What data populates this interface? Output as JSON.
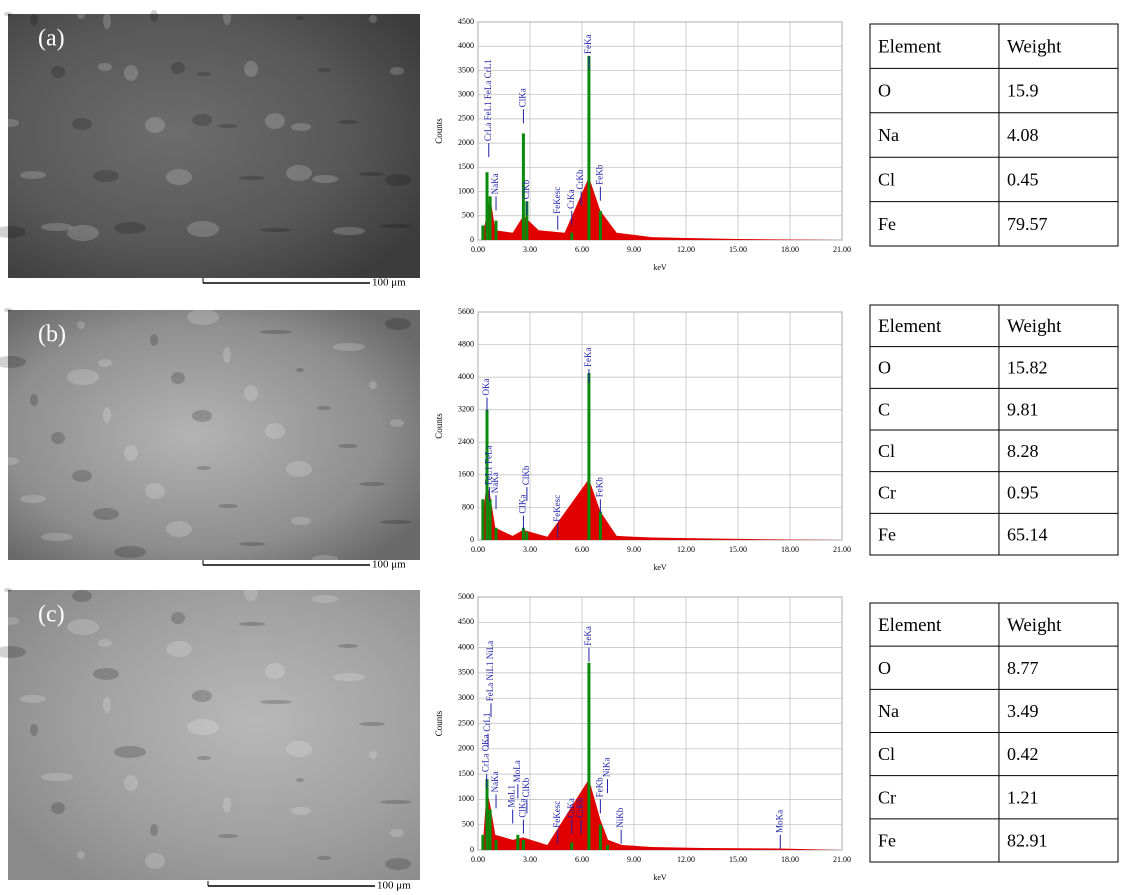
{
  "panels": [
    {
      "label": "(a)",
      "scale_bar": "100 μm",
      "table": {
        "header": [
          "Element",
          "Weight"
        ],
        "rows": [
          [
            "O",
            "15.9"
          ],
          [
            "Na",
            "4.08"
          ],
          [
            "Cl",
            "0.45"
          ],
          [
            "Fe",
            "79.57"
          ]
        ]
      }
    },
    {
      "label": "(b)",
      "scale_bar": "100 μm",
      "table": {
        "header": [
          "Element",
          "Weight"
        ],
        "rows": [
          [
            "O",
            "15.82"
          ],
          [
            "C",
            "9.81"
          ],
          [
            "Cl",
            "8.28"
          ],
          [
            "Cr",
            "0.95"
          ],
          [
            "Fe",
            "65.14"
          ]
        ]
      }
    },
    {
      "label": "(c)",
      "scale_bar": "100 μm",
      "table": {
        "header": [
          "Element",
          "Weight"
        ],
        "rows": [
          [
            "O",
            "8.77"
          ],
          [
            "Na",
            "3.49"
          ],
          [
            "Cl",
            "0.42"
          ],
          [
            "Cr",
            "1.21"
          ],
          [
            "Fe",
            "82.91"
          ]
        ]
      }
    }
  ],
  "chart_data": [
    {
      "type": "spectrum",
      "xlabel": "keV",
      "ylabel": "Counts",
      "xlim": [
        0,
        21
      ],
      "ylim": [
        0,
        4500
      ],
      "xticks": [
        {
          "value": 0,
          "label": "0.00"
        },
        {
          "value": 3,
          "label": "3.00"
        },
        {
          "value": 6,
          "label": "6.00"
        },
        {
          "value": 9,
          "label": "9.00"
        },
        {
          "value": 12,
          "label": "12.00"
        },
        {
          "value": 15,
          "label": "15.00"
        },
        {
          "value": 18,
          "label": "18.00"
        },
        {
          "value": 21,
          "label": "21.00"
        }
      ],
      "yticks": [
        0,
        500,
        1000,
        1500,
        2000,
        2500,
        3000,
        3500,
        4000,
        4500
      ],
      "grid": true,
      "series": [
        {
          "color": "#e00000",
          "x": [
            0.3,
            0.7,
            1.0,
            2.0,
            2.62,
            3.5,
            5.0,
            6.4,
            7.06,
            8,
            10,
            12,
            15,
            18,
            21
          ],
          "values": [
            150,
            900,
            200,
            150,
            500,
            200,
            150,
            1300,
            600,
            150,
            60,
            40,
            20,
            10,
            0
          ]
        },
        {
          "color": "#0a8a0a",
          "x": [
            0.28,
            0.52,
            0.7,
            1.04,
            2.62,
            2.82,
            5.41,
            6.4,
            7.06
          ],
          "values": [
            300,
            1400,
            900,
            400,
            2200,
            800,
            150,
            3800,
            600
          ]
        }
      ],
      "peak_labels": [
        {
          "text": "CrLa FeL1 FeLa CrL1",
          "x": 0.62,
          "y": 2000
        },
        {
          "text": "NaKa",
          "x": 1.04,
          "y": 900
        },
        {
          "text": "ClKa",
          "x": 2.62,
          "y": 2700
        },
        {
          "text": "ClKb",
          "x": 2.82,
          "y": 800
        },
        {
          "text": "FeKesc",
          "x": 4.6,
          "y": 500
        },
        {
          "text": "CrKa",
          "x": 5.41,
          "y": 600
        },
        {
          "text": "CrKb",
          "x": 5.95,
          "y": 1000
        },
        {
          "text": "FeKa",
          "x": 6.4,
          "y": 3800
        },
        {
          "text": "FeKb",
          "x": 7.06,
          "y": 1100
        }
      ]
    },
    {
      "type": "spectrum",
      "xlabel": "keV",
      "ylabel": "Counts",
      "xlim": [
        0,
        21
      ],
      "ylim": [
        0,
        5600
      ],
      "xticks": [
        {
          "value": 0,
          "label": "0.00"
        },
        {
          "value": 3,
          "label": "3.00"
        },
        {
          "value": 6,
          "label": "6.00"
        },
        {
          "value": 9,
          "label": "9.00"
        },
        {
          "value": 12,
          "label": "12.00"
        },
        {
          "value": 15,
          "label": "15.00"
        },
        {
          "value": 18,
          "label": "18.00"
        },
        {
          "value": 21,
          "label": "21.00"
        }
      ],
      "yticks": [
        0,
        800,
        1600,
        2400,
        3200,
        4000,
        4800,
        5600
      ],
      "grid": true,
      "series": [
        {
          "color": "#e00000",
          "x": [
            0.2,
            0.5,
            0.7,
            1.0,
            2.0,
            2.6,
            4,
            6.4,
            7.06,
            8,
            10,
            13,
            16,
            21
          ],
          "values": [
            300,
            1400,
            1100,
            300,
            100,
            250,
            80,
            1500,
            700,
            100,
            60,
            40,
            20,
            0
          ]
        },
        {
          "color": "#0a8a0a",
          "x": [
            0.28,
            0.52,
            0.7,
            1.04,
            2.62,
            2.82,
            6.4,
            7.06
          ],
          "values": [
            1000,
            3200,
            1000,
            300,
            300,
            200,
            4100,
            700
          ]
        }
      ],
      "peak_labels": [
        {
          "text": "OKa",
          "x": 0.52,
          "y": 3500
        },
        {
          "text": "FeL1 FeLa",
          "x": 0.66,
          "y": 1300
        },
        {
          "text": "NaKa",
          "x": 1.04,
          "y": 1100
        },
        {
          "text": "ClKa",
          "x": 2.62,
          "y": 600
        },
        {
          "text": "ClKb",
          "x": 2.82,
          "y": 1300
        },
        {
          "text": "FeKesc",
          "x": 4.6,
          "y": 400
        },
        {
          "text": "FeKa",
          "x": 6.4,
          "y": 4200
        },
        {
          "text": "FeKb",
          "x": 7.06,
          "y": 1000
        }
      ]
    },
    {
      "type": "spectrum",
      "xlabel": "keV",
      "ylabel": "Counts",
      "xlim": [
        0,
        21
      ],
      "ylim": [
        0,
        5000
      ],
      "xticks": [
        {
          "value": 0,
          "label": "0.00"
        },
        {
          "value": 3,
          "label": "3.00"
        },
        {
          "value": 6,
          "label": "6.00"
        },
        {
          "value": 9,
          "label": "9.00"
        },
        {
          "value": 12,
          "label": "12.00"
        },
        {
          "value": 15,
          "label": "15.00"
        },
        {
          "value": 18,
          "label": "18.00"
        },
        {
          "value": 21,
          "label": "21.00"
        }
      ],
      "yticks": [
        0,
        500,
        1000,
        1500,
        2000,
        2500,
        3000,
        3500,
        4000,
        4500,
        5000
      ],
      "grid": true,
      "series": [
        {
          "color": "#e00000",
          "x": [
            0.3,
            0.5,
            0.7,
            1.0,
            2.0,
            2.6,
            4,
            6.4,
            7.06,
            7.5,
            8.3,
            10,
            13,
            17.4,
            21
          ],
          "values": [
            200,
            1200,
            900,
            300,
            200,
            250,
            100,
            1400,
            600,
            200,
            100,
            60,
            40,
            30,
            0
          ]
        },
        {
          "color": "#0a8a0a",
          "x": [
            0.28,
            0.52,
            0.7,
            1.04,
            2.3,
            2.62,
            5.41,
            6.4,
            7.06,
            7.47
          ],
          "values": [
            300,
            1400,
            800,
            200,
            300,
            200,
            150,
            3700,
            500,
            100
          ]
        }
      ],
      "peak_labels": [
        {
          "text": "CrLa OKa",
          "x": 0.5,
          "y": 1500
        },
        {
          "text": "CrL1",
          "x": 0.58,
          "y": 2300
        },
        {
          "text": "FeLa NiL1 NiLa",
          "x": 0.75,
          "y": 2900
        },
        {
          "text": "NaKa",
          "x": 1.04,
          "y": 1100
        },
        {
          "text": "MoL1",
          "x": 2.0,
          "y": 800
        },
        {
          "text": "MoLa",
          "x": 2.3,
          "y": 1300
        },
        {
          "text": "ClKa",
          "x": 2.62,
          "y": 600
        },
        {
          "text": "ClKb",
          "x": 2.82,
          "y": 1000
        },
        {
          "text": "FeKesc",
          "x": 4.6,
          "y": 400
        },
        {
          "text": "CrKa",
          "x": 5.41,
          "y": 600
        },
        {
          "text": "CrKb",
          "x": 5.95,
          "y": 600
        },
        {
          "text": "FeKa",
          "x": 6.4,
          "y": 4000
        },
        {
          "text": "FeKb",
          "x": 7.06,
          "y": 1000
        },
        {
          "text": "NiKa",
          "x": 7.47,
          "y": 1400
        },
        {
          "text": "NiKb",
          "x": 8.26,
          "y": 400
        },
        {
          "text": "MoKa",
          "x": 17.44,
          "y": 300
        }
      ]
    }
  ]
}
